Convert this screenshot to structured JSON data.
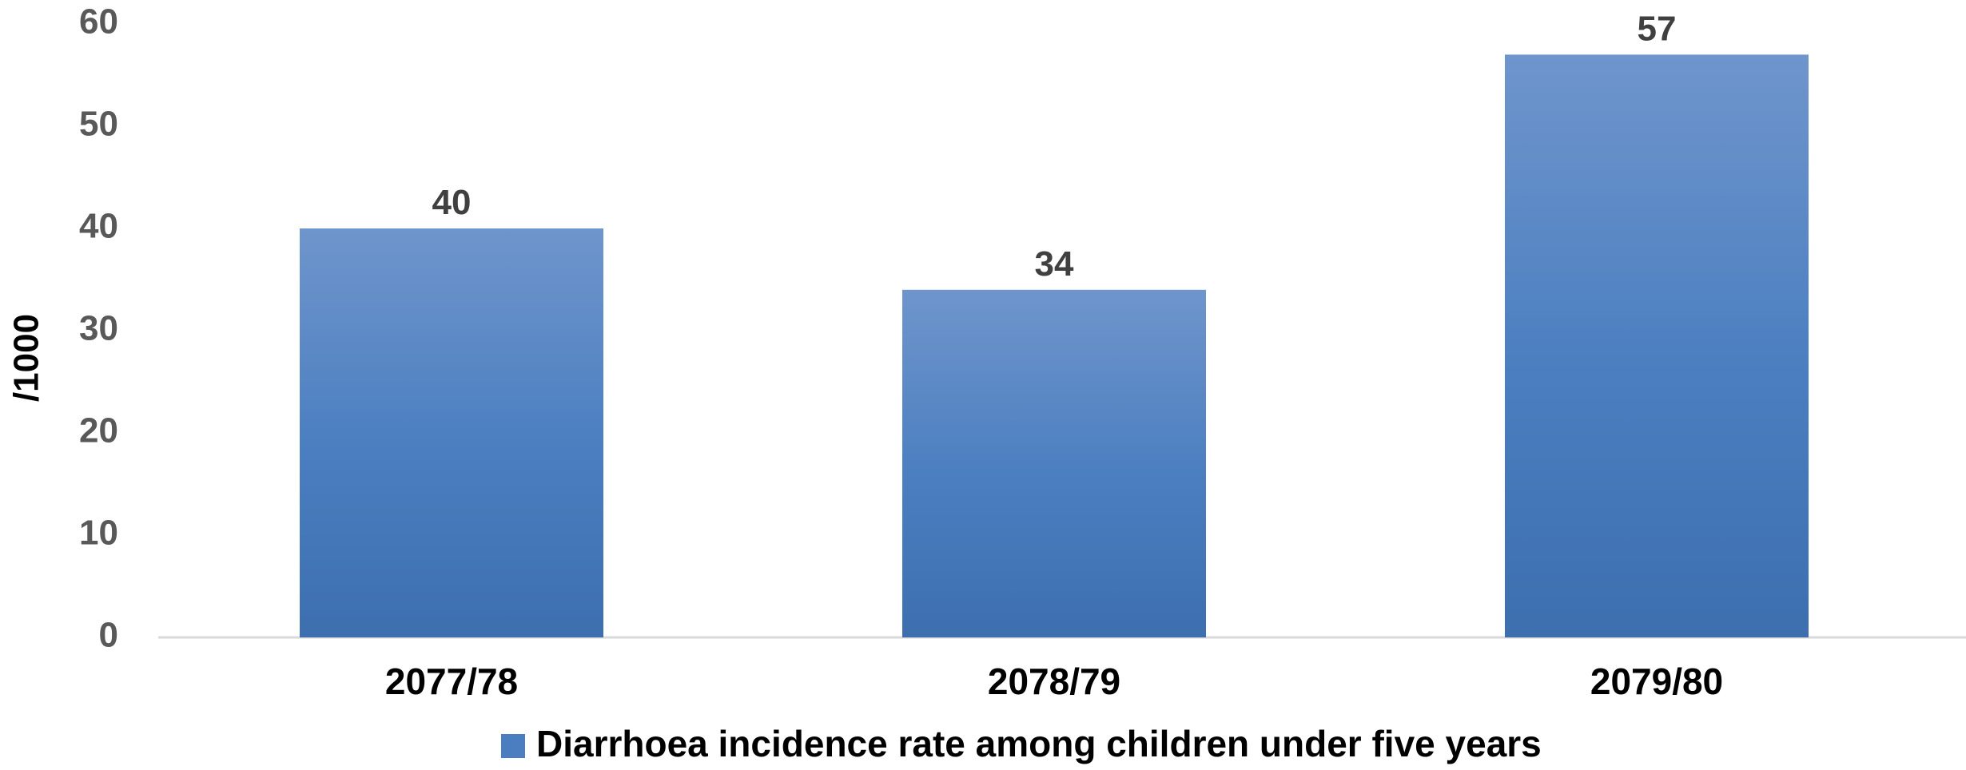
{
  "chart_data": {
    "type": "bar",
    "categories": [
      "2077/78",
      "2078/79",
      "2079/80"
    ],
    "series": [
      {
        "name": "Diarrhoea incidence rate among children under five years",
        "values": [
          40,
          34,
          57
        ],
        "color": "#4A7EC0"
      }
    ],
    "data_labels": [
      "40",
      "34",
      "57"
    ],
    "xlabel": "",
    "ylabel": "/1000",
    "ylim": [
      0,
      60
    ],
    "yticks": [
      0,
      10,
      20,
      30,
      40,
      50,
      60
    ],
    "ytick_labels": [
      "0",
      "10",
      "20",
      "30",
      "40",
      "50",
      "60"
    ],
    "grid": false,
    "legend": {
      "position": "bottom",
      "label": "Diarrhoea incidence rate among children under five years"
    }
  }
}
